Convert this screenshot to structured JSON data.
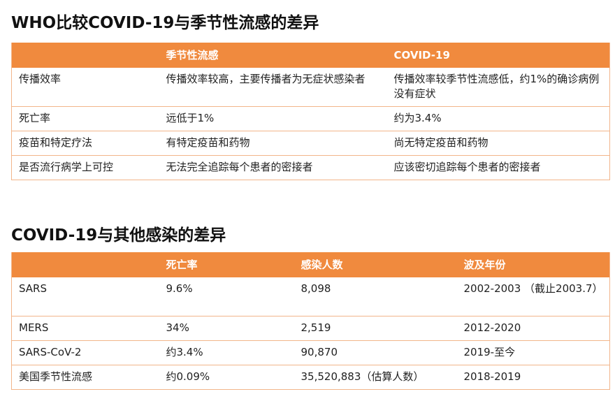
{
  "section1": {
    "title": "WHO比较COVID-19与季节性流感的差异",
    "headers": [
      "",
      "季节性流感",
      "COVID-19"
    ],
    "rows": [
      [
        "传播效率",
        "传播效率较高，主要传播者为无症状感染者",
        "传播效率较季节性流感低，约1%的确诊病例没有症状"
      ],
      [
        "死亡率",
        "远低于1%",
        "约为3.4%"
      ],
      [
        "疫苗和特定疗法",
        "有特定疫苗和药物",
        "尚无特定疫苗和药物"
      ],
      [
        "是否流行病学上可控",
        "无法完全追踪每个患者的密接者",
        "应该密切追踪每个患者的密接者"
      ]
    ]
  },
  "section2": {
    "title": "COVID-19与其他感染的差异",
    "headers": [
      "",
      "死亡率",
      "感染人数",
      "波及年份"
    ],
    "rows": [
      [
        "SARS",
        "9.6%",
        "8,098",
        "2002-2003 （截止2003.7）"
      ],
      [
        "MERS",
        "34%",
        "2,519",
        "2012-2020"
      ],
      [
        "SARS-CoV-2",
        "约3.4%",
        "90,870",
        "2019-至今"
      ],
      [
        "美国季节性流感",
        "约0.09%",
        "35,520,883（估算人数）",
        "2018-2019"
      ]
    ]
  },
  "colors": {
    "header_bg": "#f08a3e",
    "header_text": "#ffffff",
    "row_border": "#f2b58a"
  }
}
